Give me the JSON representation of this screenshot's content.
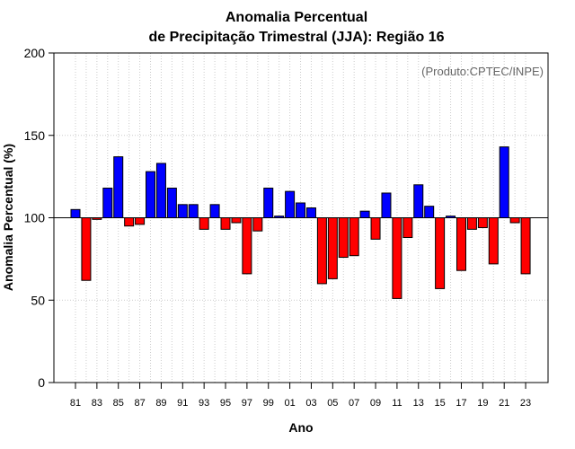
{
  "chart_data": {
    "type": "bar",
    "title": "Anomalia Percentual",
    "subtitle": "de Precipitação Trimestral (JJA): Região 16",
    "xlabel": "Ano",
    "ylabel": "Anomalia Percentual (%)",
    "credit": "(Produto:CPTEC/INPE)",
    "ylim": [
      0,
      200
    ],
    "yticks": [
      "0",
      "50",
      "100",
      "150",
      "200"
    ],
    "baseline": 100,
    "grid": true,
    "colors": {
      "above": "#0000ff",
      "below": "#ff0000",
      "edge": "#000000",
      "grid": "#cccccc"
    },
    "categories": [
      "81",
      "82",
      "83",
      "84",
      "85",
      "86",
      "87",
      "88",
      "89",
      "90",
      "91",
      "92",
      "93",
      "94",
      "95",
      "96",
      "97",
      "98",
      "99",
      "00",
      "01",
      "02",
      "03",
      "04",
      "05",
      "06",
      "07",
      "08",
      "09",
      "10",
      "11",
      "12",
      "13",
      "14",
      "15",
      "16",
      "17",
      "18",
      "19",
      "20",
      "21",
      "22",
      "23"
    ],
    "xtick_labels": [
      "81",
      "83",
      "85",
      "87",
      "89",
      "91",
      "93",
      "95",
      "97",
      "99",
      "01",
      "03",
      "05",
      "07",
      "09",
      "11",
      "13",
      "15",
      "17",
      "19",
      "21",
      "23"
    ],
    "values": [
      105,
      62,
      99,
      118,
      137,
      95,
      96,
      128,
      133,
      118,
      108,
      108,
      93,
      108,
      93,
      97,
      66,
      92,
      118,
      101,
      116,
      109,
      106,
      60,
      63,
      76,
      77,
      104,
      87,
      115,
      51,
      88,
      120,
      107,
      57,
      101,
      68,
      93,
      94,
      72,
      143,
      97,
      66
    ]
  }
}
